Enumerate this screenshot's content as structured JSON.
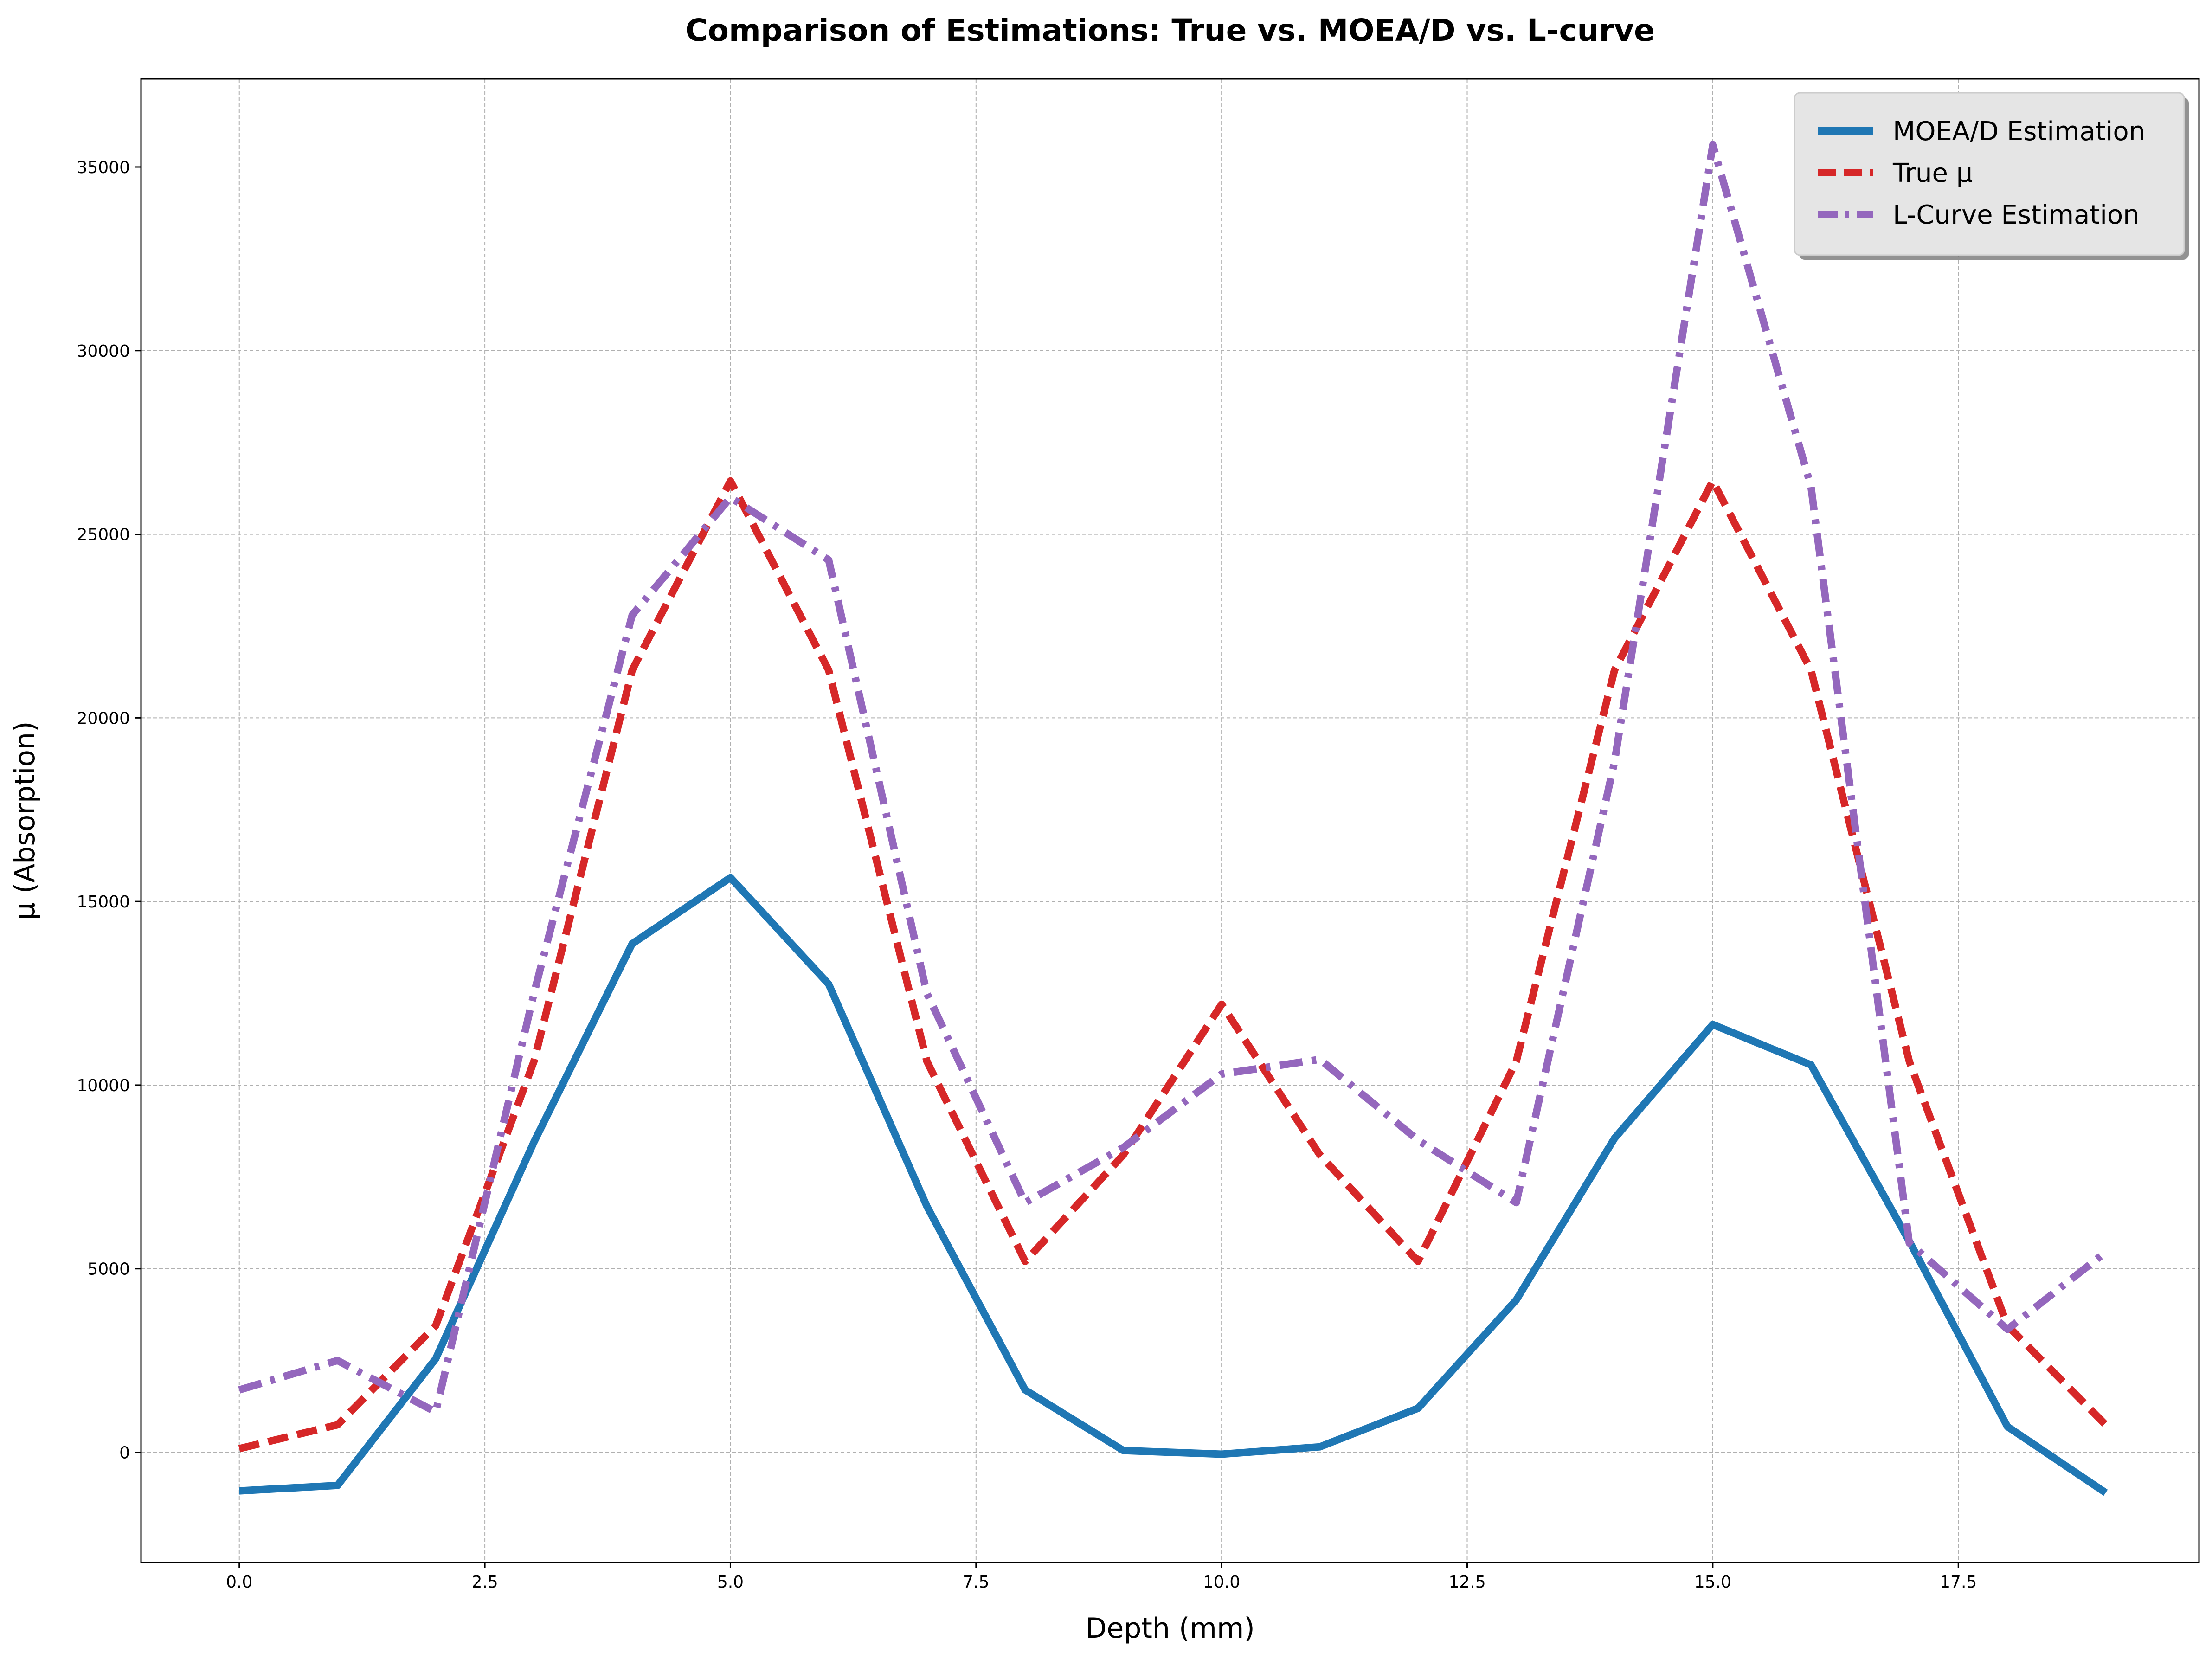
{
  "chart_data": {
    "type": "line",
    "title": "Comparison of Estimations: True vs. MOEA/D vs. L-curve",
    "xlabel": "Depth (mm)",
    "ylabel": "μ (Absorption)",
    "xlim": [
      -1,
      19.95
    ],
    "ylim": [
      -3000,
      37400
    ],
    "xticks": [
      "0.0",
      "2.5",
      "5.0",
      "7.5",
      "10.0",
      "12.5",
      "15.0",
      "17.5"
    ],
    "xtick_values": [
      0,
      2.5,
      5,
      7.5,
      10,
      12.5,
      15,
      17.5
    ],
    "yticks": [
      "0",
      "5000",
      "10000",
      "15000",
      "20000",
      "25000",
      "30000",
      "35000"
    ],
    "ytick_values": [
      0,
      5000,
      10000,
      15000,
      20000,
      25000,
      30000,
      35000
    ],
    "grid": true,
    "legend_position": "top-right",
    "x": [
      0,
      1,
      2,
      3,
      4,
      5,
      6,
      7,
      8,
      9,
      10,
      11,
      12,
      13,
      14,
      15,
      16,
      17,
      18,
      19
    ],
    "series": [
      {
        "name": "MOEA/D Estimation",
        "color": "#1f77b4",
        "style": "solid",
        "values": [
          -1050,
          -900,
          2550,
          8450,
          13850,
          15650,
          12750,
          6700,
          1700,
          50,
          -50,
          150,
          1200,
          4150,
          8550,
          11650,
          10550,
          5750,
          700,
          -1100
        ]
      },
      {
        "name": "True μ",
        "color": "#d62728",
        "style": "dashed",
        "values": [
          100,
          750,
          3450,
          10650,
          21300,
          26450,
          21300,
          10650,
          5200,
          8100,
          12200,
          8100,
          5200,
          10650,
          21300,
          26450,
          21300,
          10650,
          3450,
          750
        ]
      },
      {
        "name": "L-Curve Estimation",
        "color": "#9467bd",
        "style": "dashdot",
        "values": [
          1700,
          2500,
          1100,
          12500,
          22800,
          26000,
          24300,
          12500,
          6800,
          8300,
          10300,
          10700,
          8500,
          6800,
          18800,
          35600,
          26300,
          5700,
          3350,
          5450
        ]
      }
    ]
  }
}
